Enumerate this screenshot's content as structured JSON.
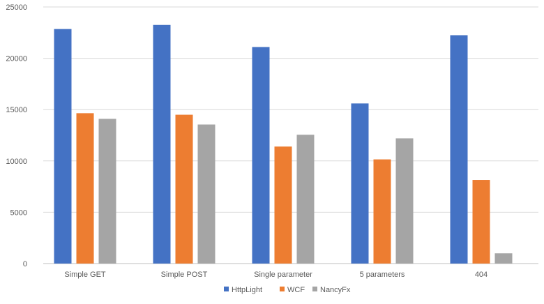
{
  "chart_data": {
    "type": "bar",
    "categories": [
      "Simple GET",
      "Simple POST",
      "Single parameter",
      "5 parameters",
      "404"
    ],
    "series": [
      {
        "name": "HttpLight",
        "color": "#4472C4",
        "values": [
          22850,
          23250,
          21100,
          15600,
          22250
        ]
      },
      {
        "name": "WCF",
        "color": "#ED7D31",
        "values": [
          14650,
          14500,
          11400,
          10150,
          8150
        ]
      },
      {
        "name": "NancyFx",
        "color": "#A5A5A5",
        "values": [
          14100,
          13550,
          12550,
          12200,
          1000
        ]
      }
    ],
    "ylim": [
      0,
      25000
    ],
    "yticks": [
      0,
      5000,
      10000,
      15000,
      20000,
      25000
    ],
    "grid": true,
    "legend": "bottom",
    "title": "",
    "xlabel": "",
    "ylabel": ""
  }
}
